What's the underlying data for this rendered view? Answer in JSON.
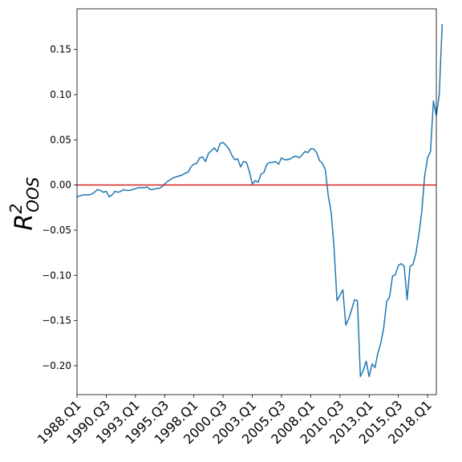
{
  "chart_data": {
    "type": "line",
    "title": "",
    "xlabel": "",
    "ylabel": {
      "base": "R",
      "superscript": "2",
      "subscript": "OOS"
    },
    "x_tick_labels": [
      "1988.Q1",
      "1990.Q3",
      "1993.Q1",
      "1995.Q3",
      "1998.Q1",
      "2000.Q3",
      "2003.Q1",
      "2005.Q3",
      "2008.Q1",
      "2010.Q3",
      "2013.Q1",
      "2015.Q3",
      "2018.Q1"
    ],
    "x_tick_index": [
      0,
      10,
      20,
      30,
      40,
      50,
      60,
      70,
      80,
      90,
      100,
      110,
      120
    ],
    "y_ticks": [
      -0.2,
      -0.15,
      -0.1,
      -0.05,
      0.0,
      0.05,
      0.1,
      0.15
    ],
    "y_tick_labels": [
      "−0.20",
      "−0.15",
      "−0.10",
      "−0.05",
      "0.00",
      "0.05",
      "0.10",
      "0.15"
    ],
    "xlim": [
      0,
      123
    ],
    "ylim": [
      -0.232,
      0.195
    ],
    "grid": false,
    "reference_line": {
      "y": 0.0,
      "color": "#d62728"
    },
    "series": [
      {
        "color": "#1f77b4",
        "start_period": "1988.Q1",
        "values": [
          -0.013,
          -0.012,
          -0.011,
          -0.011,
          -0.011,
          -0.01,
          -0.008,
          -0.005,
          -0.006,
          -0.008,
          -0.007,
          -0.013,
          -0.011,
          -0.007,
          -0.008,
          -0.007,
          -0.005,
          -0.006,
          -0.006,
          -0.005,
          -0.004,
          -0.003,
          -0.003,
          -0.003,
          -0.002,
          -0.005,
          -0.005,
          -0.004,
          -0.004,
          -0.002,
          0.001,
          0.004,
          0.006,
          0.008,
          0.009,
          0.01,
          0.011,
          0.013,
          0.014,
          0.02,
          0.023,
          0.024,
          0.03,
          0.031,
          0.026,
          0.035,
          0.038,
          0.041,
          0.037,
          0.046,
          0.047,
          0.044,
          0.04,
          0.033,
          0.028,
          0.029,
          0.02,
          0.026,
          0.025,
          0.015,
          0.001,
          0.005,
          0.003,
          0.012,
          0.014,
          0.023,
          0.025,
          0.025,
          0.026,
          0.023,
          0.03,
          0.028,
          0.028,
          0.029,
          0.031,
          0.032,
          0.03,
          0.033,
          0.037,
          0.036,
          0.04,
          0.04,
          0.036,
          0.027,
          0.024,
          0.017,
          -0.012,
          -0.03,
          -0.07,
          -0.128,
          -0.122,
          -0.116,
          -0.155,
          -0.148,
          -0.138,
          -0.127,
          -0.128,
          -0.212,
          -0.205,
          -0.195,
          -0.212,
          -0.198,
          -0.202,
          -0.186,
          -0.175,
          -0.158,
          -0.129,
          -0.124,
          -0.101,
          -0.099,
          -0.089,
          -0.087,
          -0.09,
          -0.127,
          -0.09,
          -0.088,
          -0.076,
          -0.055,
          -0.03,
          0.01,
          0.03,
          0.037,
          0.093,
          0.077,
          0.1,
          0.178
        ]
      }
    ]
  }
}
